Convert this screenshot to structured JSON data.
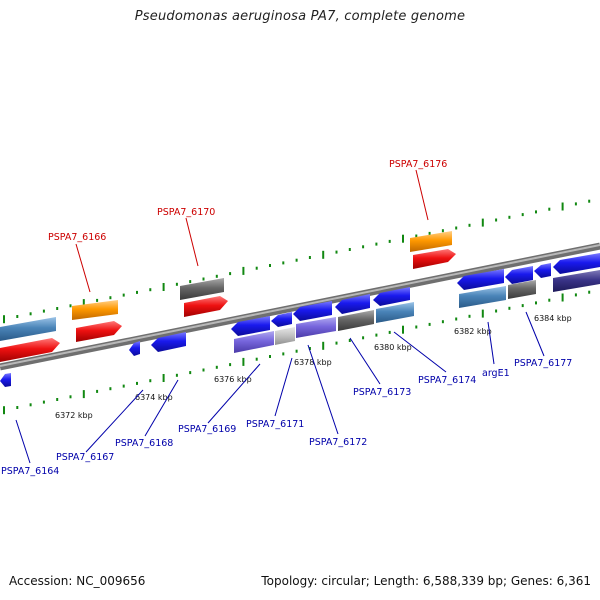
{
  "title": "Pseudomonas aeruginosa PA7, complete genome",
  "footer": {
    "accession": "Accession: NC_009656",
    "topology": "Topology: circular; Length: 6,588,339 bp; Genes: 6,361"
  },
  "scale_labels": [
    "6372 kbp",
    "6374 kbp",
    "6376 kbp",
    "6378 kbp",
    "6380 kbp",
    "6382 kbp",
    "6384 kbp"
  ],
  "gene_labels": [
    {
      "id": "l6166",
      "text": "PSPA7_6166",
      "color": "#cc0000"
    },
    {
      "id": "l6170",
      "text": "PSPA7_6170",
      "color": "#cc0000"
    },
    {
      "id": "l6176",
      "text": "PSPA7_6176",
      "color": "#cc0000"
    },
    {
      "id": "l6164",
      "text": "PSPA7_6164",
      "color": "#0000aa"
    },
    {
      "id": "l6167",
      "text": "PSPA7_6167",
      "color": "#0000aa"
    },
    {
      "id": "l6168",
      "text": "PSPA7_6168",
      "color": "#0000aa"
    },
    {
      "id": "l6169",
      "text": "PSPA7_6169",
      "color": "#0000aa"
    },
    {
      "id": "l6171",
      "text": "PSPA7_6171",
      "color": "#0000aa"
    },
    {
      "id": "l6172",
      "text": "PSPA7_6172",
      "color": "#0000aa"
    },
    {
      "id": "l6173",
      "text": "PSPA7_6173",
      "color": "#0000aa"
    },
    {
      "id": "l6174",
      "text": "PSPA7_6174",
      "color": "#0000aa"
    },
    {
      "id": "argE1",
      "text": "argE1",
      "color": "#0000aa"
    },
    {
      "id": "l6177",
      "text": "PSPA7_6177",
      "color": "#0000aa"
    }
  ],
  "colors": {
    "backbone": "#8a8a8a",
    "tick": "#118811",
    "forward_gene": "#1a1aee",
    "reverse_gene": "#ee1111",
    "rna_gene": "#ff9900",
    "pseudo_gene": "#666666",
    "steel_gene": "#4a84b8",
    "lavender_gene": "#7766dd"
  }
}
